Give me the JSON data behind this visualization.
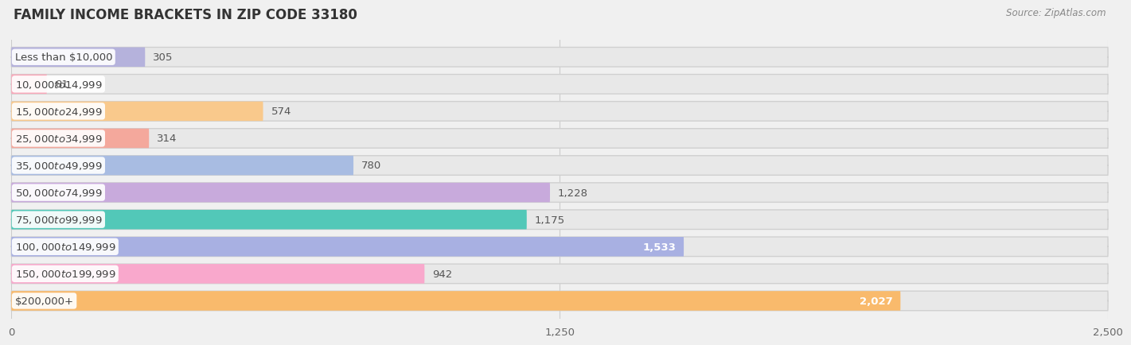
{
  "title": "FAMILY INCOME BRACKETS IN ZIP CODE 33180",
  "source": "Source: ZipAtlas.com",
  "categories": [
    "Less than $10,000",
    "$10,000 to $14,999",
    "$15,000 to $24,999",
    "$25,000 to $34,999",
    "$35,000 to $49,999",
    "$50,000 to $74,999",
    "$75,000 to $99,999",
    "$100,000 to $149,999",
    "$150,000 to $199,999",
    "$200,000+"
  ],
  "values": [
    305,
    81,
    574,
    314,
    780,
    1228,
    1175,
    1533,
    942,
    2027
  ],
  "bar_colors": [
    "#b5b2dc",
    "#f9aabb",
    "#f9c98c",
    "#f4a89c",
    "#a8bce2",
    "#c8aadc",
    "#52c8b8",
    "#a8b0e2",
    "#f9a8cc",
    "#f9ba6c"
  ],
  "value_inside": [
    false,
    false,
    false,
    false,
    false,
    false,
    false,
    true,
    false,
    true
  ],
  "xlim": [
    0,
    2500
  ],
  "xticks": [
    0,
    1250,
    2500
  ],
  "xtick_labels": [
    "0",
    "1,250",
    "2,500"
  ],
  "background_color": "#f0f0f0",
  "bar_bg_color": "#e8e8e8",
  "bar_bg_edge_color": "#d0d0d0",
  "title_fontsize": 12,
  "label_fontsize": 9.5,
  "value_fontsize": 9.5
}
